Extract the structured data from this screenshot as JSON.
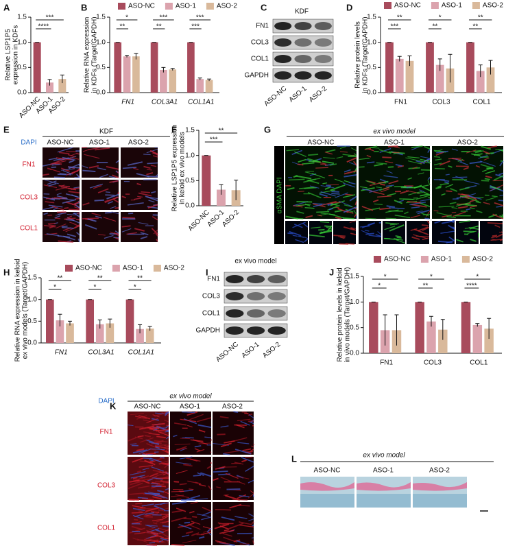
{
  "panel_labels": [
    "A",
    "B",
    "C",
    "D",
    "E",
    "F",
    "G",
    "H",
    "I",
    "J",
    "K",
    "L"
  ],
  "chart_data": [
    {
      "type": "bar",
      "ylabel": [
        "Relative LSP1P5",
        "expression in KDFs"
      ],
      "categories": [
        "ASO-NC",
        "ASO-1",
        "ASO-2"
      ],
      "values": [
        1.0,
        0.2,
        0.27
      ],
      "errors": [
        0.0,
        0.06,
        0.08
      ],
      "colors": [
        "#a84b5c",
        "#dba3ad",
        "#d9b99b"
      ],
      "ylim": [
        0,
        1.5
      ],
      "yticks": [
        {
          "value": 0,
          "label": "0.0"
        },
        0.5,
        {
          "value": 1,
          "label": "1.0"
        },
        1.5
      ],
      "comparisons": [
        {
          "label": "***",
          "between": [
            "ASO-NC",
            "ASO-2"
          ]
        },
        {
          "label": "****",
          "between": [
            "ASO-NC",
            "ASO-1"
          ]
        }
      ]
    },
    {
      "type": "bar",
      "ylabel": [
        "Relative RNA expression",
        "in KDFs (Target/GAPDH)"
      ],
      "categories": [
        "FN1",
        "COL3A1",
        "COL1A1"
      ],
      "series": [
        {
          "name": "ASO-NC",
          "color": "#a84b5c",
          "values": [
            1.0,
            1.0,
            1.0
          ],
          "errors": [
            0.0,
            0.0,
            0.0
          ]
        },
        {
          "name": "ASO-1",
          "color": "#dba3ad",
          "values": [
            0.72,
            0.45,
            0.27
          ],
          "errors": [
            0.02,
            0.05,
            0.02
          ]
        },
        {
          "name": "ASO-2",
          "color": "#d9b99b",
          "values": [
            0.72,
            0.46,
            0.25
          ],
          "errors": [
            0.06,
            0.02,
            0.02
          ]
        }
      ],
      "ylim": [
        0,
        1.5
      ],
      "yticks": [
        {
          "value": 0,
          "label": "0.0"
        },
        0.5,
        {
          "value": 1,
          "label": "1.0"
        },
        1.5
      ],
      "comparisons": [
        {
          "category": "FN1",
          "label": "*",
          "between": [
            "ASO-NC",
            "ASO-2"
          ]
        },
        {
          "category": "FN1",
          "label": "**",
          "between": [
            "ASO-NC",
            "ASO-1"
          ]
        },
        {
          "category": "COL3A1",
          "label": "***",
          "between": [
            "ASO-NC",
            "ASO-2"
          ]
        },
        {
          "category": "COL3A1",
          "label": "**",
          "between": [
            "ASO-NC",
            "ASO-1"
          ]
        },
        {
          "category": "COL1A1",
          "label": "***",
          "between": [
            "ASO-NC",
            "ASO-2"
          ]
        },
        {
          "category": "COL1A1",
          "label": "***",
          "between": [
            "ASO-NC",
            "ASO-1"
          ]
        }
      ]
    },
    {
      "type": "bar",
      "ylabel": [
        "Relative protein levels",
        "in KDFs (Target/GAPDH)"
      ],
      "categories": [
        "FN1",
        "COL3",
        "COL1"
      ],
      "series": [
        {
          "name": "ASO-NC",
          "color": "#a84b5c",
          "values": [
            1.0,
            1.0,
            1.0
          ],
          "errors": [
            0.0,
            0.0,
            0.0
          ]
        },
        {
          "name": "ASO-1",
          "color": "#dba3ad",
          "values": [
            0.67,
            0.55,
            0.43
          ],
          "errors": [
            0.05,
            0.12,
            0.12
          ]
        },
        {
          "name": "ASO-2",
          "color": "#d9b99b",
          "values": [
            0.63,
            0.48,
            0.5
          ],
          "errors": [
            0.1,
            0.28,
            0.14
          ]
        }
      ],
      "ylim": [
        0,
        1.5
      ],
      "yticks": [
        {
          "value": 0,
          "label": "0.0"
        },
        0.5,
        {
          "value": 1,
          "label": "1.0"
        },
        1.5
      ],
      "comparisons": [
        {
          "category": "FN1",
          "label": "**",
          "between": [
            "ASO-NC",
            "ASO-2"
          ]
        },
        {
          "category": "FN1",
          "label": "***",
          "between": [
            "ASO-NC",
            "ASO-1"
          ]
        },
        {
          "category": "COL3",
          "label": "*",
          "between": [
            "ASO-NC",
            "ASO-2"
          ]
        },
        {
          "category": "COL3",
          "label": "**",
          "between": [
            "ASO-NC",
            "ASO-1"
          ]
        },
        {
          "category": "COL1",
          "label": "**",
          "between": [
            "ASO-NC",
            "ASO-2"
          ]
        },
        {
          "category": "COL1",
          "label": "**",
          "between": [
            "ASO-NC",
            "ASO-1"
          ]
        }
      ]
    },
    {
      "type": "bar",
      "ylabel": [
        "Relative LSP1P5 expression",
        "in keloid ex vivo models"
      ],
      "categories": [
        "ASO-NC",
        "ASO-1",
        "ASO-2"
      ],
      "values": [
        1.0,
        0.32,
        0.31
      ],
      "errors": [
        0.0,
        0.1,
        0.2
      ],
      "colors": [
        "#a84b5c",
        "#dba3ad",
        "#d9b99b"
      ],
      "ylim": [
        0,
        1.5
      ],
      "yticks": [
        {
          "value": 0,
          "label": "0.0"
        },
        0.5,
        {
          "value": 1,
          "label": "1.0"
        },
        1.5
      ],
      "comparisons": [
        {
          "label": "**",
          "between": [
            "ASO-NC",
            "ASO-2"
          ]
        },
        {
          "label": "***",
          "between": [
            "ASO-NC",
            "ASO-1"
          ]
        }
      ]
    },
    {
      "type": "bar",
      "ylabel": [
        "Relative RNA expression in keloid",
        "ex vivo models (Target/GAPDH)"
      ],
      "categories": [
        "FN1",
        "COL3A1",
        "COL1A1"
      ],
      "series": [
        {
          "name": "ASO-NC",
          "color": "#a84b5c",
          "values": [
            1.0,
            1.0,
            1.0
          ],
          "errors": [
            0.0,
            0.0,
            0.0
          ]
        },
        {
          "name": "ASO-1",
          "color": "#dba3ad",
          "values": [
            0.52,
            0.43,
            0.32
          ],
          "errors": [
            0.14,
            0.1,
            0.1
          ]
        },
        {
          "name": "ASO-2",
          "color": "#d9b99b",
          "values": [
            0.45,
            0.45,
            0.33
          ],
          "errors": [
            0.05,
            0.1,
            0.05
          ]
        }
      ],
      "ylim": [
        0,
        1.5
      ],
      "yticks": [
        {
          "value": 0,
          "label": "0.0"
        },
        0.5,
        {
          "value": 1,
          "label": "1.0"
        },
        1.5
      ],
      "comparisons": [
        {
          "category": "FN1",
          "label": "**",
          "between": [
            "ASO-NC",
            "ASO-2"
          ]
        },
        {
          "category": "FN1",
          "label": "*",
          "between": [
            "ASO-NC",
            "ASO-1"
          ]
        },
        {
          "category": "COL3A1",
          "label": "**",
          "between": [
            "ASO-NC",
            "ASO-2"
          ]
        },
        {
          "category": "COL3A1",
          "label": "*",
          "between": [
            "ASO-NC",
            "ASO-1"
          ]
        },
        {
          "category": "COL1A1",
          "label": "**",
          "between": [
            "ASO-NC",
            "ASO-2"
          ]
        },
        {
          "category": "COL1A1",
          "label": "*",
          "between": [
            "ASO-NC",
            "ASO-1"
          ]
        }
      ]
    },
    {
      "type": "bar",
      "ylabel": [
        "Relative protein levels in keloid",
        "in vivo models  (Target/GAPDH)"
      ],
      "categories": [
        "FN1",
        "COL3",
        "COL1"
      ],
      "series": [
        {
          "name": "ASO-NC",
          "color": "#a84b5c",
          "values": [
            1.0,
            1.0,
            1.0
          ],
          "errors": [
            0.0,
            0.0,
            0.0
          ]
        },
        {
          "name": "ASO-1",
          "color": "#dba3ad",
          "values": [
            0.45,
            0.62,
            0.55
          ],
          "errors": [
            0.3,
            0.1,
            0.03
          ]
        },
        {
          "name": "ASO-2",
          "color": "#d9b99b",
          "values": [
            0.45,
            0.46,
            0.48
          ],
          "errors": [
            0.3,
            0.2,
            0.2
          ]
        }
      ],
      "ylim": [
        0,
        1.5
      ],
      "yticks": [
        {
          "value": 0,
          "label": "0.0"
        },
        0.5,
        {
          "value": 1,
          "label": "1.0"
        },
        1.5
      ],
      "comparisons": [
        {
          "category": "FN1",
          "label": "*",
          "between": [
            "ASO-NC",
            "ASO-2"
          ]
        },
        {
          "category": "FN1",
          "label": "*",
          "between": [
            "ASO-NC",
            "ASO-1"
          ]
        },
        {
          "category": "COL3",
          "label": "*",
          "between": [
            "ASO-NC",
            "ASO-2"
          ]
        },
        {
          "category": "COL3",
          "label": "**",
          "between": [
            "ASO-NC",
            "ASO-1"
          ]
        },
        {
          "category": "COL1",
          "label": "*",
          "between": [
            "ASO-NC",
            "ASO-2"
          ]
        },
        {
          "category": "COL1",
          "label": "****",
          "between": [
            "ASO-NC",
            "ASO-1"
          ]
        }
      ]
    }
  ],
  "blot_c": {
    "title": "KDF",
    "rows": [
      "FN1",
      "COL3",
      "COL1",
      "GAPDH"
    ],
    "lanes": [
      "ASO-NC",
      "ASO-1",
      "ASO-2"
    ]
  },
  "blot_i": {
    "title": "ex vivo model",
    "rows": [
      "FN1",
      "COL3",
      "COL1",
      "GAPDH"
    ],
    "lanes": [
      "ASO-NC",
      "ASO-1",
      "ASO-2"
    ]
  },
  "panel_e": {
    "title": "KDF",
    "stains": [
      "DAPI",
      "FN1",
      "COL3",
      "COL1"
    ],
    "columns": [
      "ASO-NC",
      "ASO-1",
      "ASO-2"
    ]
  },
  "panel_g": {
    "title": "ex vivo model",
    "side_label": "αSMA DAPI",
    "columns": [
      "ASO-NC",
      "ASO-1",
      "ASO-2"
    ]
  },
  "panel_k": {
    "title": "ex vivo model",
    "stains": [
      "DAPI",
      "FN1",
      "COL3",
      "COL1"
    ],
    "columns": [
      "ASO-NC",
      "ASO-1",
      "ASO-2"
    ]
  },
  "panel_l": {
    "title": "ex vivo model",
    "columns": [
      "ASO-NC",
      "ASO-1",
      "ASO-2"
    ]
  }
}
